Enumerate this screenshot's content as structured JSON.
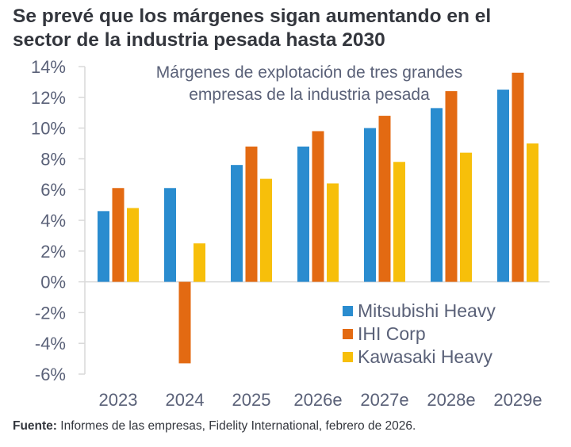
{
  "header": {
    "title_line1": "Se prevé que los márgenes sigan aumentando en el",
    "title_line2": "sector de la industria pesada hasta 2030"
  },
  "footer": {
    "source_label": "Fuente:",
    "source_text": " Informes de las empresas, Fidelity International, febrero de 2026."
  },
  "chart_data": {
    "type": "bar",
    "title": "Se prevé que los márgenes sigan aumentando en el sector de la industria pesada hasta 2030",
    "subtitle_line1": "Márgenes de explotación de tres grandes",
    "subtitle_line2": "empresas de la industria pesada",
    "xlabel": "",
    "ylabel": "",
    "categories": [
      "2023",
      "2024",
      "2025",
      "2026e",
      "2027e",
      "2028e",
      "2029e"
    ],
    "series": [
      {
        "name": "Mitsubishi Heavy",
        "color": "#2a8ccf",
        "values": [
          4.6,
          6.1,
          7.6,
          8.8,
          10.0,
          11.3,
          12.5
        ]
      },
      {
        "name": "IHI Corp",
        "color": "#e36a12",
        "values": [
          6.1,
          -5.3,
          8.8,
          9.8,
          10.8,
          12.4,
          13.6
        ]
      },
      {
        "name": "Kawasaki Heavy",
        "color": "#f7bf0a",
        "values": [
          4.8,
          2.5,
          6.7,
          6.4,
          7.8,
          8.4,
          9.0
        ]
      }
    ],
    "ylim": [
      -6,
      14
    ],
    "yticks": [
      14,
      12,
      10,
      8,
      6,
      4,
      2,
      0,
      -2,
      -4,
      -6
    ],
    "ytick_labels": [
      "14%",
      "12%",
      "10%",
      "8%",
      "6%",
      "4%",
      "2%",
      "0%",
      "-2%",
      "-4%",
      "-6%"
    ],
    "grid": false,
    "legend_position": "bottom-right",
    "axis_color": "#d9d9d9"
  }
}
